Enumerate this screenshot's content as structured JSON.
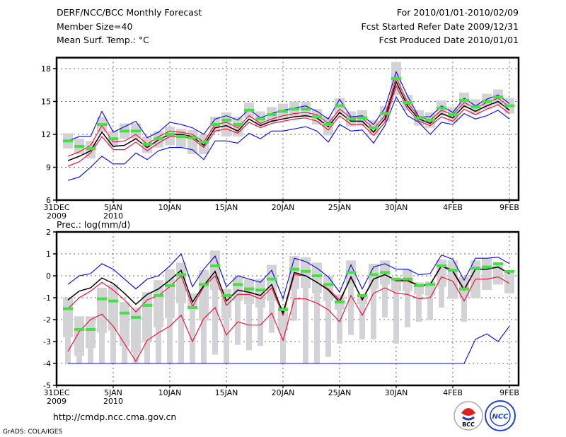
{
  "header": {
    "title": "DERF/NCC/BCC Monthly Forecast",
    "member_size": "Member Size=40",
    "variable": "Mean Surf. Temp.: °C",
    "period": "For 2010/01/01-2010/02/09",
    "started": "Fcst Started Refer Date 2009/12/31",
    "produced": "Fcst Produced Date 2010/01/01"
  },
  "footer": {
    "url": "http://cmdp.ncc.cma.gov.cn",
    "credit": "GrADS: COLA/IGES",
    "logo_left": "BCC",
    "logo_right": "NCC"
  },
  "colors": {
    "max_min": "#0000ff",
    "spread": "#ff0030",
    "mean": "#000000",
    "obs": "#44e044",
    "range": "#d3d3d6"
  },
  "chart_data": [
    {
      "type": "line",
      "title": "Mean Surf. Temp.: °C",
      "ylabel": "",
      "ylim": [
        6,
        19
      ],
      "yticks": [
        "6",
        "9",
        "12",
        "15",
        "18"
      ],
      "ytick_values": [
        6,
        9,
        12,
        15,
        18
      ],
      "xticks": [
        {
          "day": 0,
          "label": "31DEC",
          "sub": "2009"
        },
        {
          "day": 5,
          "label": "5JAN",
          "sub": "2010"
        },
        {
          "day": 10,
          "label": "10JAN"
        },
        {
          "day": 15,
          "label": "15JAN"
        },
        {
          "day": 20,
          "label": "20JAN"
        },
        {
          "day": 25,
          "label": "25JAN"
        },
        {
          "day": 30,
          "label": "30JAN"
        },
        {
          "day": 35,
          "label": "4FEB"
        },
        {
          "day": 40,
          "label": "9FEB"
        }
      ],
      "grid": true,
      "days": [
        1,
        2,
        3,
        4,
        5,
        6,
        7,
        8,
        9,
        10,
        11,
        12,
        13,
        14,
        15,
        16,
        17,
        18,
        19,
        20,
        21,
        22,
        23,
        24,
        25,
        26,
        27,
        28,
        29,
        30,
        31,
        32,
        33,
        34,
        35,
        36,
        37,
        38,
        39,
        40
      ],
      "series": [
        {
          "name": "max",
          "color": "#0000ff",
          "values": [
            11.4,
            11.8,
            11.8,
            14.1,
            12.2,
            12.7,
            13.2,
            11.7,
            12.2,
            13.1,
            12.9,
            12.6,
            12.0,
            13.4,
            13.7,
            13.3,
            14.3,
            13.5,
            13.9,
            14.2,
            14.4,
            14.6,
            14.1,
            13.4,
            15.2,
            13.6,
            13.7,
            12.9,
            14.4,
            17.7,
            15.5,
            13.6,
            13.6,
            14.6,
            14.0,
            15.3,
            14.6,
            15.2,
            15.6,
            14.8
          ]
        },
        {
          "name": "min",
          "color": "#0000ff",
          "values": [
            7.8,
            8.1,
            9.0,
            10.0,
            9.3,
            9.3,
            10.3,
            9.7,
            10.5,
            10.8,
            10.8,
            10.6,
            9.7,
            11.4,
            11.4,
            11.2,
            12.1,
            11.6,
            12.3,
            12.3,
            12.5,
            12.7,
            12.3,
            11.3,
            12.9,
            12.3,
            12.4,
            11.2,
            12.8,
            15.4,
            13.7,
            13.1,
            12.0,
            13.1,
            12.9,
            13.9,
            13.4,
            13.7,
            14.2,
            13.4
          ]
        },
        {
          "name": "upper",
          "color": "#ff0030",
          "values": [
            10.0,
            10.4,
            11.0,
            12.8,
            11.3,
            11.4,
            12.0,
            11.1,
            11.8,
            12.3,
            12.2,
            12.0,
            11.3,
            12.9,
            13.1,
            12.6,
            13.7,
            13.0,
            13.4,
            13.7,
            13.9,
            14.0,
            13.8,
            13.0,
            14.3,
            13.5,
            13.5,
            12.5,
            13.7,
            17.2,
            14.9,
            13.6,
            13.3,
            14.2,
            13.8,
            14.9,
            14.4,
            14.9,
            15.3,
            14.5
          ]
        },
        {
          "name": "lower",
          "color": "#ff0030",
          "values": [
            9.1,
            9.5,
            10.3,
            11.8,
            10.6,
            10.6,
            11.3,
            10.5,
            11.2,
            11.8,
            11.8,
            11.6,
            10.8,
            12.3,
            12.5,
            12.1,
            13.1,
            12.6,
            13.0,
            13.2,
            13.4,
            13.5,
            13.2,
            12.4,
            13.7,
            12.9,
            12.9,
            11.9,
            13.1,
            16.4,
            14.3,
            13.2,
            12.8,
            13.6,
            13.2,
            14.3,
            13.8,
            14.3,
            14.7,
            13.9
          ]
        },
        {
          "name": "mean",
          "color": "#000000",
          "values": [
            9.6,
            10.0,
            10.5,
            12.2,
            10.9,
            11.0,
            11.6,
            10.8,
            11.5,
            12.0,
            12.0,
            11.8,
            11.0,
            12.6,
            12.8,
            12.3,
            13.4,
            12.8,
            13.2,
            13.4,
            13.6,
            13.7,
            13.5,
            12.7,
            14.0,
            13.2,
            13.2,
            12.2,
            13.4,
            16.8,
            14.6,
            13.4,
            13.0,
            13.9,
            13.5,
            14.6,
            14.1,
            14.6,
            15.0,
            14.2
          ]
        }
      ],
      "obs": [
        11.4,
        10.9,
        10.7,
        12.9,
        11.6,
        12.3,
        12.3,
        11.1,
        11.6,
        12.0,
        11.8,
        11.7,
        11.3,
        12.9,
        13.3,
        12.9,
        14.2,
        13.4,
        13.8,
        14.1,
        14.3,
        14.3,
        13.6,
        12.9,
        14.6,
        13.4,
        13.5,
        12.6,
        13.9,
        17.1,
        14.9,
        13.5,
        13.3,
        14.4,
        13.8,
        15.1,
        14.5,
        15.0,
        15.4,
        14.6
      ],
      "range_high": [
        12.1,
        11.6,
        11.4,
        13.6,
        12.3,
        13.0,
        13.0,
        11.8,
        12.3,
        12.7,
        12.5,
        12.4,
        12.0,
        13.6,
        14.0,
        13.6,
        14.9,
        14.1,
        14.5,
        14.8,
        15.0,
        15.0,
        14.3,
        13.6,
        15.3,
        14.1,
        14.2,
        13.3,
        14.6,
        18.6,
        15.6,
        14.2,
        14.0,
        15.1,
        14.5,
        15.8,
        15.2,
        15.7,
        16.1,
        15.3
      ],
      "range_low": [
        10.7,
        10.2,
        9.8,
        12.2,
        10.9,
        11.6,
        11.6,
        10.3,
        10.8,
        11.0,
        10.8,
        10.2,
        10.2,
        12.2,
        11.8,
        11.8,
        13.5,
        12.7,
        13.1,
        13.4,
        13.6,
        13.6,
        12.9,
        11.9,
        13.9,
        12.7,
        12.8,
        11.9,
        13.2,
        15.6,
        14.2,
        12.8,
        12.6,
        13.7,
        13.1,
        14.4,
        13.8,
        14.3,
        14.7,
        13.9
      ]
    },
    {
      "type": "line",
      "title": "Prec.: log(mm/d)",
      "ylim": [
        -5,
        2
      ],
      "yticks": [
        "-5",
        "-4",
        "-3",
        "-2",
        "-1",
        "0",
        "1",
        "2"
      ],
      "ytick_values": [
        -5,
        -4,
        -3,
        -2,
        -1,
        0,
        1,
        2
      ],
      "xticks": [
        {
          "day": 0,
          "label": "31DEC",
          "sub": "2009"
        },
        {
          "day": 5,
          "label": "5JAN",
          "sub": "2010"
        },
        {
          "day": 10,
          "label": "10JAN"
        },
        {
          "day": 15,
          "label": "15JAN"
        },
        {
          "day": 20,
          "label": "20JAN"
        },
        {
          "day": 25,
          "label": "25JAN"
        },
        {
          "day": 30,
          "label": "30JAN"
        },
        {
          "day": 35,
          "label": "4FEB"
        },
        {
          "day": 40,
          "label": "9FEB"
        }
      ],
      "grid": true,
      "days": [
        1,
        2,
        3,
        4,
        5,
        6,
        7,
        8,
        9,
        10,
        11,
        12,
        13,
        14,
        15,
        16,
        17,
        18,
        19,
        20,
        21,
        22,
        23,
        24,
        25,
        26,
        27,
        28,
        29,
        30,
        31,
        32,
        33,
        34,
        35,
        36,
        37,
        38,
        39,
        40
      ],
      "series": [
        {
          "name": "max",
          "color": "#0000ff",
          "values": [
            -0.39,
            0.0,
            0.1,
            0.55,
            0.3,
            -0.15,
            -0.6,
            -0.15,
            0.0,
            0.45,
            1.0,
            -0.5,
            0.3,
            0.9,
            -0.5,
            0.0,
            -0.15,
            -0.3,
            0.25,
            -1.05,
            0.8,
            0.65,
            0.35,
            -0.05,
            -0.75,
            0.5,
            -0.6,
            0.4,
            0.55,
            0.3,
            0.3,
            0.05,
            0.1,
            0.95,
            0.75,
            -0.2,
            0.8,
            0.8,
            0.85,
            0.55
          ]
        },
        {
          "name": "min",
          "color": "#0000ff",
          "values": [
            -4,
            -4,
            -4,
            -4,
            -4,
            -4,
            -4,
            -4,
            -4,
            -4,
            -4,
            -4,
            -4,
            -4,
            -4,
            -4,
            -4,
            -4,
            -4,
            -4,
            -4,
            -4,
            -4,
            -4,
            -4,
            -4,
            -4,
            -4,
            -4,
            -4,
            -4,
            -4,
            -4,
            -4,
            -4,
            -4,
            -2.9,
            -2.65,
            -3.0,
            -2.3
          ]
        },
        {
          "name": "upper",
          "color": "#ff0030",
          "values": [
            -1.5,
            -1.0,
            -0.7,
            -0.3,
            -0.65,
            -1.1,
            -1.65,
            -1.1,
            -0.9,
            -0.5,
            0.0,
            -1.4,
            -0.5,
            0.0,
            -1.35,
            -0.85,
            -0.85,
            -1.05,
            -0.55,
            -1.8,
            0.05,
            0.0,
            -0.3,
            -0.6,
            -1.1,
            -0.1,
            -1.05,
            -0.15,
            0.05,
            -0.25,
            -0.25,
            -0.45,
            -0.4,
            0.5,
            0.25,
            -0.6,
            0.3,
            0.3,
            0.4,
            0.1
          ]
        },
        {
          "name": "lower",
          "color": "#ff0030",
          "values": [
            -3.45,
            -2.55,
            -2.0,
            -1.75,
            -2.3,
            -3.1,
            -3.9,
            -2.95,
            -2.6,
            -2.3,
            -1.8,
            -3.0,
            -1.95,
            -1.45,
            -2.7,
            -2.1,
            -2.25,
            -2.25,
            -1.7,
            -2.95,
            -1.05,
            -1.05,
            -1.25,
            -1.55,
            -2.1,
            -0.9,
            -1.8,
            -0.8,
            -0.55,
            -0.8,
            -0.85,
            -1.05,
            -1.0,
            -0.05,
            -0.25,
            -1.15,
            -0.15,
            -0.15,
            -0.05,
            -0.35
          ]
        },
        {
          "name": "mean",
          "color": "#000000",
          "values": [
            -1.1,
            -0.7,
            -0.55,
            -0.1,
            -0.35,
            -0.8,
            -1.3,
            -0.85,
            -0.6,
            -0.2,
            0.25,
            -1.2,
            -0.45,
            0.2,
            -1.15,
            -0.65,
            -0.75,
            -0.9,
            -0.4,
            -1.7,
            0.15,
            0.0,
            -0.3,
            -0.65,
            -1.2,
            -0.05,
            -1.1,
            -0.15,
            0.05,
            -0.2,
            -0.2,
            -0.45,
            -0.4,
            0.45,
            0.2,
            -0.65,
            0.3,
            0.3,
            0.4,
            0.1
          ]
        }
      ],
      "obs": [
        -1.5,
        -2.45,
        -2.45,
        -1.05,
        -1.15,
        -1.7,
        -1.9,
        -1.35,
        -0.9,
        -0.45,
        0.05,
        -1.45,
        -0.4,
        0.45,
        -0.9,
        -0.4,
        -0.6,
        -0.65,
        -0.15,
        -1.55,
        0.3,
        0.2,
        0.0,
        -0.4,
        -1.2,
        0.15,
        -0.9,
        0.05,
        0.15,
        -0.15,
        -0.15,
        -0.45,
        -0.4,
        0.45,
        0.25,
        -0.6,
        0.35,
        0.4,
        0.55,
        0.2
      ],
      "range_high": [
        -1.0,
        -1.85,
        -1.85,
        -0.55,
        -0.4,
        -1.2,
        -1.45,
        -0.75,
        -0.2,
        0.3,
        0.6,
        -0.8,
        0.25,
        1.15,
        -0.6,
        -0.05,
        -0.15,
        -0.15,
        0.5,
        -1.4,
        0.9,
        0.85,
        0.6,
        0.0,
        -0.85,
        0.7,
        -0.9,
        0.55,
        0.7,
        -0.15,
        0.3,
        -0.3,
        -0.25,
        0.75,
        0.7,
        -0.05,
        0.7,
        0.8,
        0.6,
        0.15
      ],
      "range_low": [
        -2.8,
        -3.65,
        -3.3,
        -2.6,
        -2.5,
        -3.2,
        -3.5,
        -3.0,
        -2.35,
        -1.95,
        -1.25,
        -1.55,
        -2.05,
        -0.65,
        -1.95,
        -1.15,
        -1.3,
        -1.45,
        -1.15,
        -2.5,
        -0.6,
        -0.55,
        -0.8,
        -1.15,
        -1.55,
        -0.5,
        -1.3,
        -0.6,
        -0.4,
        -0.7,
        -0.7,
        -0.85,
        -0.9,
        -0.5,
        -1.05,
        -1.0,
        -1.0,
        -0.65,
        -0.4,
        -0.8
      ],
      "whisker_low": [
        -4,
        -4,
        -4,
        -4,
        -4,
        -4,
        -4,
        -4,
        -4,
        -4,
        -4,
        -4,
        -4,
        -3.6,
        -4,
        -3.15,
        -3.4,
        -3.2,
        -2.6,
        -4,
        -2.05,
        -4,
        -4,
        -3.7,
        -3.1,
        -2.7,
        -2.9,
        -2.9,
        -1.9,
        -3.1,
        -2.35,
        -2.1,
        -2.0,
        -1.45,
        -1.05,
        -2.1,
        -1.0,
        -0.65,
        -0.4,
        -0.8
      ]
    }
  ]
}
